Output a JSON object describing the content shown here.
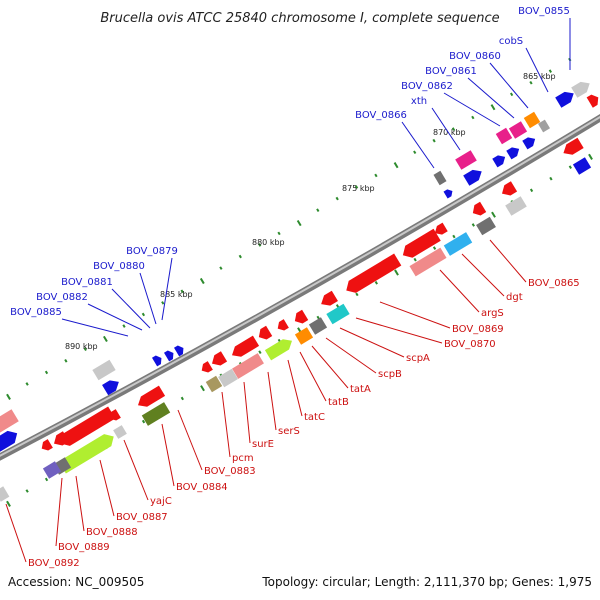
{
  "title": "Brucella ovis ATCC 25840 chromosome I, complete sequence",
  "footer": {
    "accession": "Accession: NC_009505",
    "summary": "Topology: circular; Length: 2,111,370 bp; Genes: 1,975"
  },
  "colors": {
    "backbone_dark": "#7a7a7a",
    "backbone_light": "#c8c8c8",
    "tick": "#2e8b2e",
    "label_blue": "#1a1acc",
    "label_red": "#cc1111",
    "red": "#ee1111",
    "blue": "#1010dd",
    "pink": "#f08a8a",
    "magenta": "#e8208a",
    "orange": "#ff8c00",
    "cyan": "#20c8c8",
    "skyblue": "#30b0ee",
    "lime": "#b0ee30",
    "olive": "#608020",
    "grey": "#a0a0a0",
    "lightgrey": "#c8c8c8",
    "darkgrey": "#707070",
    "khaki": "#a89860",
    "purple": "#7060c0"
  },
  "kbp_markers": [
    "865 kbp",
    "870 kbp",
    "875 kbp",
    "880 kbp",
    "885 kbp",
    "890 kbp"
  ],
  "genes_top": [
    "BOV_0855",
    "cobS",
    "BOV_0860",
    "BOV_0861",
    "BOV_0862",
    "xth",
    "BOV_0866",
    "BOV_0879",
    "BOV_0880",
    "BOV_0881",
    "BOV_0882",
    "BOV_0885"
  ],
  "genes_bottom": [
    "BOV_0865",
    "dgt",
    "argS",
    "BOV_0869",
    "BOV_0870",
    "scpA",
    "scpB",
    "tatA",
    "tatB",
    "tatC",
    "serS",
    "surE",
    "pcm",
    "BOV_0883",
    "BOV_0884",
    "yajC",
    "BOV_0887",
    "BOV_0888",
    "BOV_0889",
    "BOV_0892"
  ]
}
